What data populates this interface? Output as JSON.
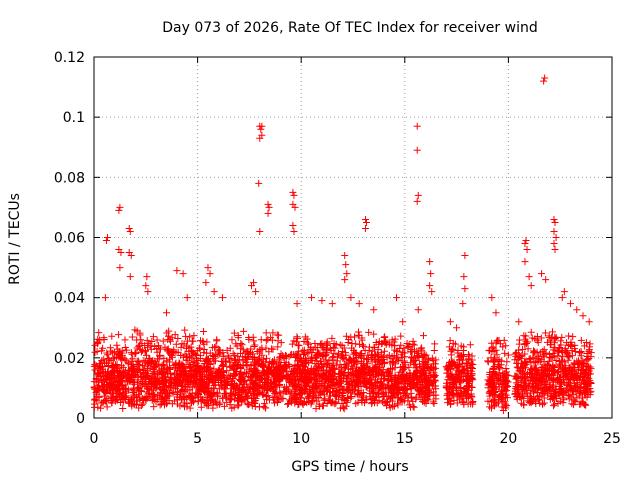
{
  "chart_data": {
    "type": "scatter",
    "title": "Day 073 of 2026, Rate Of TEC Index for receiver wind",
    "xlabel": "GPS time / hours",
    "ylabel": "ROTI / TECUs",
    "xlim": [
      0,
      25
    ],
    "ylim": [
      0,
      0.12
    ],
    "x_ticks": [
      "0",
      "5",
      "10",
      "15",
      "20",
      "25"
    ],
    "y_ticks": [
      "0",
      "0.02",
      "0.04",
      "0.06",
      "0.08",
      "0.1",
      "0.12"
    ],
    "x_tick_values": [
      0,
      5,
      10,
      15,
      20,
      25
    ],
    "y_tick_values": [
      0,
      0.02,
      0.04,
      0.06,
      0.08,
      0.1,
      0.12
    ],
    "grid": true,
    "marker": "plus",
    "color": "#ff0000",
    "bulk_band": {
      "description": "dense scatter of ROTI samples",
      "segments": [
        {
          "x": [
            0.0,
            15.5
          ],
          "ymin": 0.003,
          "ymax": 0.03
        },
        {
          "x": [
            15.5,
            16.5
          ],
          "ymin": 0.004,
          "ymax": 0.028
        },
        {
          "x": [
            17.0,
            18.3
          ],
          "ymin": 0.004,
          "ymax": 0.026
        },
        {
          "x": [
            19.0,
            20.0
          ],
          "ymin": 0.002,
          "ymax": 0.03
        },
        {
          "x": [
            20.3,
            24.0
          ],
          "ymin": 0.004,
          "ymax": 0.03
        }
      ]
    },
    "series": [
      {
        "name": "ROTI outliers",
        "points": [
          [
            0.6,
            0.059
          ],
          [
            0.65,
            0.06
          ],
          [
            0.55,
            0.04
          ],
          [
            1.2,
            0.069
          ],
          [
            1.25,
            0.07
          ],
          [
            1.2,
            0.056
          ],
          [
            1.3,
            0.055
          ],
          [
            1.25,
            0.05
          ],
          [
            1.7,
            0.063
          ],
          [
            1.75,
            0.062
          ],
          [
            1.7,
            0.055
          ],
          [
            1.8,
            0.054
          ],
          [
            1.75,
            0.047
          ],
          [
            2.5,
            0.044
          ],
          [
            2.6,
            0.042
          ],
          [
            2.55,
            0.047
          ],
          [
            3.5,
            0.035
          ],
          [
            4.0,
            0.049
          ],
          [
            4.3,
            0.048
          ],
          [
            4.5,
            0.04
          ],
          [
            5.4,
            0.045
          ],
          [
            5.5,
            0.05
          ],
          [
            5.6,
            0.048
          ],
          [
            5.8,
            0.042
          ],
          [
            6.2,
            0.04
          ],
          [
            7.6,
            0.044
          ],
          [
            7.7,
            0.045
          ],
          [
            7.8,
            0.042
          ],
          [
            8.0,
            0.097
          ],
          [
            8.05,
            0.096
          ],
          [
            8.1,
            0.094
          ],
          [
            8.0,
            0.093
          ],
          [
            8.1,
            0.097
          ],
          [
            7.95,
            0.078
          ],
          [
            8.0,
            0.062
          ],
          [
            8.4,
            0.071
          ],
          [
            8.45,
            0.07
          ],
          [
            8.4,
            0.068
          ],
          [
            9.6,
            0.075
          ],
          [
            9.65,
            0.074
          ],
          [
            9.6,
            0.071
          ],
          [
            9.7,
            0.07
          ],
          [
            9.6,
            0.064
          ],
          [
            9.65,
            0.062
          ],
          [
            9.8,
            0.038
          ],
          [
            10.5,
            0.04
          ],
          [
            11.0,
            0.039
          ],
          [
            11.5,
            0.038
          ],
          [
            12.1,
            0.054
          ],
          [
            12.15,
            0.051
          ],
          [
            12.2,
            0.048
          ],
          [
            12.1,
            0.046
          ],
          [
            12.4,
            0.04
          ],
          [
            12.8,
            0.038
          ],
          [
            13.1,
            0.066
          ],
          [
            13.15,
            0.065
          ],
          [
            13.1,
            0.063
          ],
          [
            13.5,
            0.036
          ],
          [
            14.6,
            0.04
          ],
          [
            14.9,
            0.032
          ],
          [
            15.6,
            0.097
          ],
          [
            15.6,
            0.089
          ],
          [
            15.65,
            0.074
          ],
          [
            15.6,
            0.072
          ],
          [
            15.65,
            0.036
          ],
          [
            16.2,
            0.052
          ],
          [
            16.25,
            0.048
          ],
          [
            16.2,
            0.044
          ],
          [
            16.3,
            0.042
          ],
          [
            17.2,
            0.032
          ],
          [
            17.5,
            0.03
          ],
          [
            17.9,
            0.054
          ],
          [
            17.85,
            0.047
          ],
          [
            17.9,
            0.043
          ],
          [
            17.8,
            0.038
          ],
          [
            19.2,
            0.04
          ],
          [
            19.4,
            0.035
          ],
          [
            20.5,
            0.032
          ],
          [
            20.8,
            0.058
          ],
          [
            20.85,
            0.059
          ],
          [
            20.9,
            0.056
          ],
          [
            20.8,
            0.052
          ],
          [
            21.0,
            0.047
          ],
          [
            21.1,
            0.044
          ],
          [
            21.7,
            0.112
          ],
          [
            21.75,
            0.113
          ],
          [
            21.6,
            0.048
          ],
          [
            21.8,
            0.046
          ],
          [
            22.2,
            0.066
          ],
          [
            22.25,
            0.065
          ],
          [
            22.2,
            0.062
          ],
          [
            22.3,
            0.06
          ],
          [
            22.2,
            0.058
          ],
          [
            22.25,
            0.056
          ],
          [
            22.6,
            0.04
          ],
          [
            22.7,
            0.042
          ],
          [
            23.0,
            0.038
          ],
          [
            23.3,
            0.036
          ],
          [
            23.6,
            0.034
          ],
          [
            23.9,
            0.032
          ]
        ]
      }
    ]
  }
}
